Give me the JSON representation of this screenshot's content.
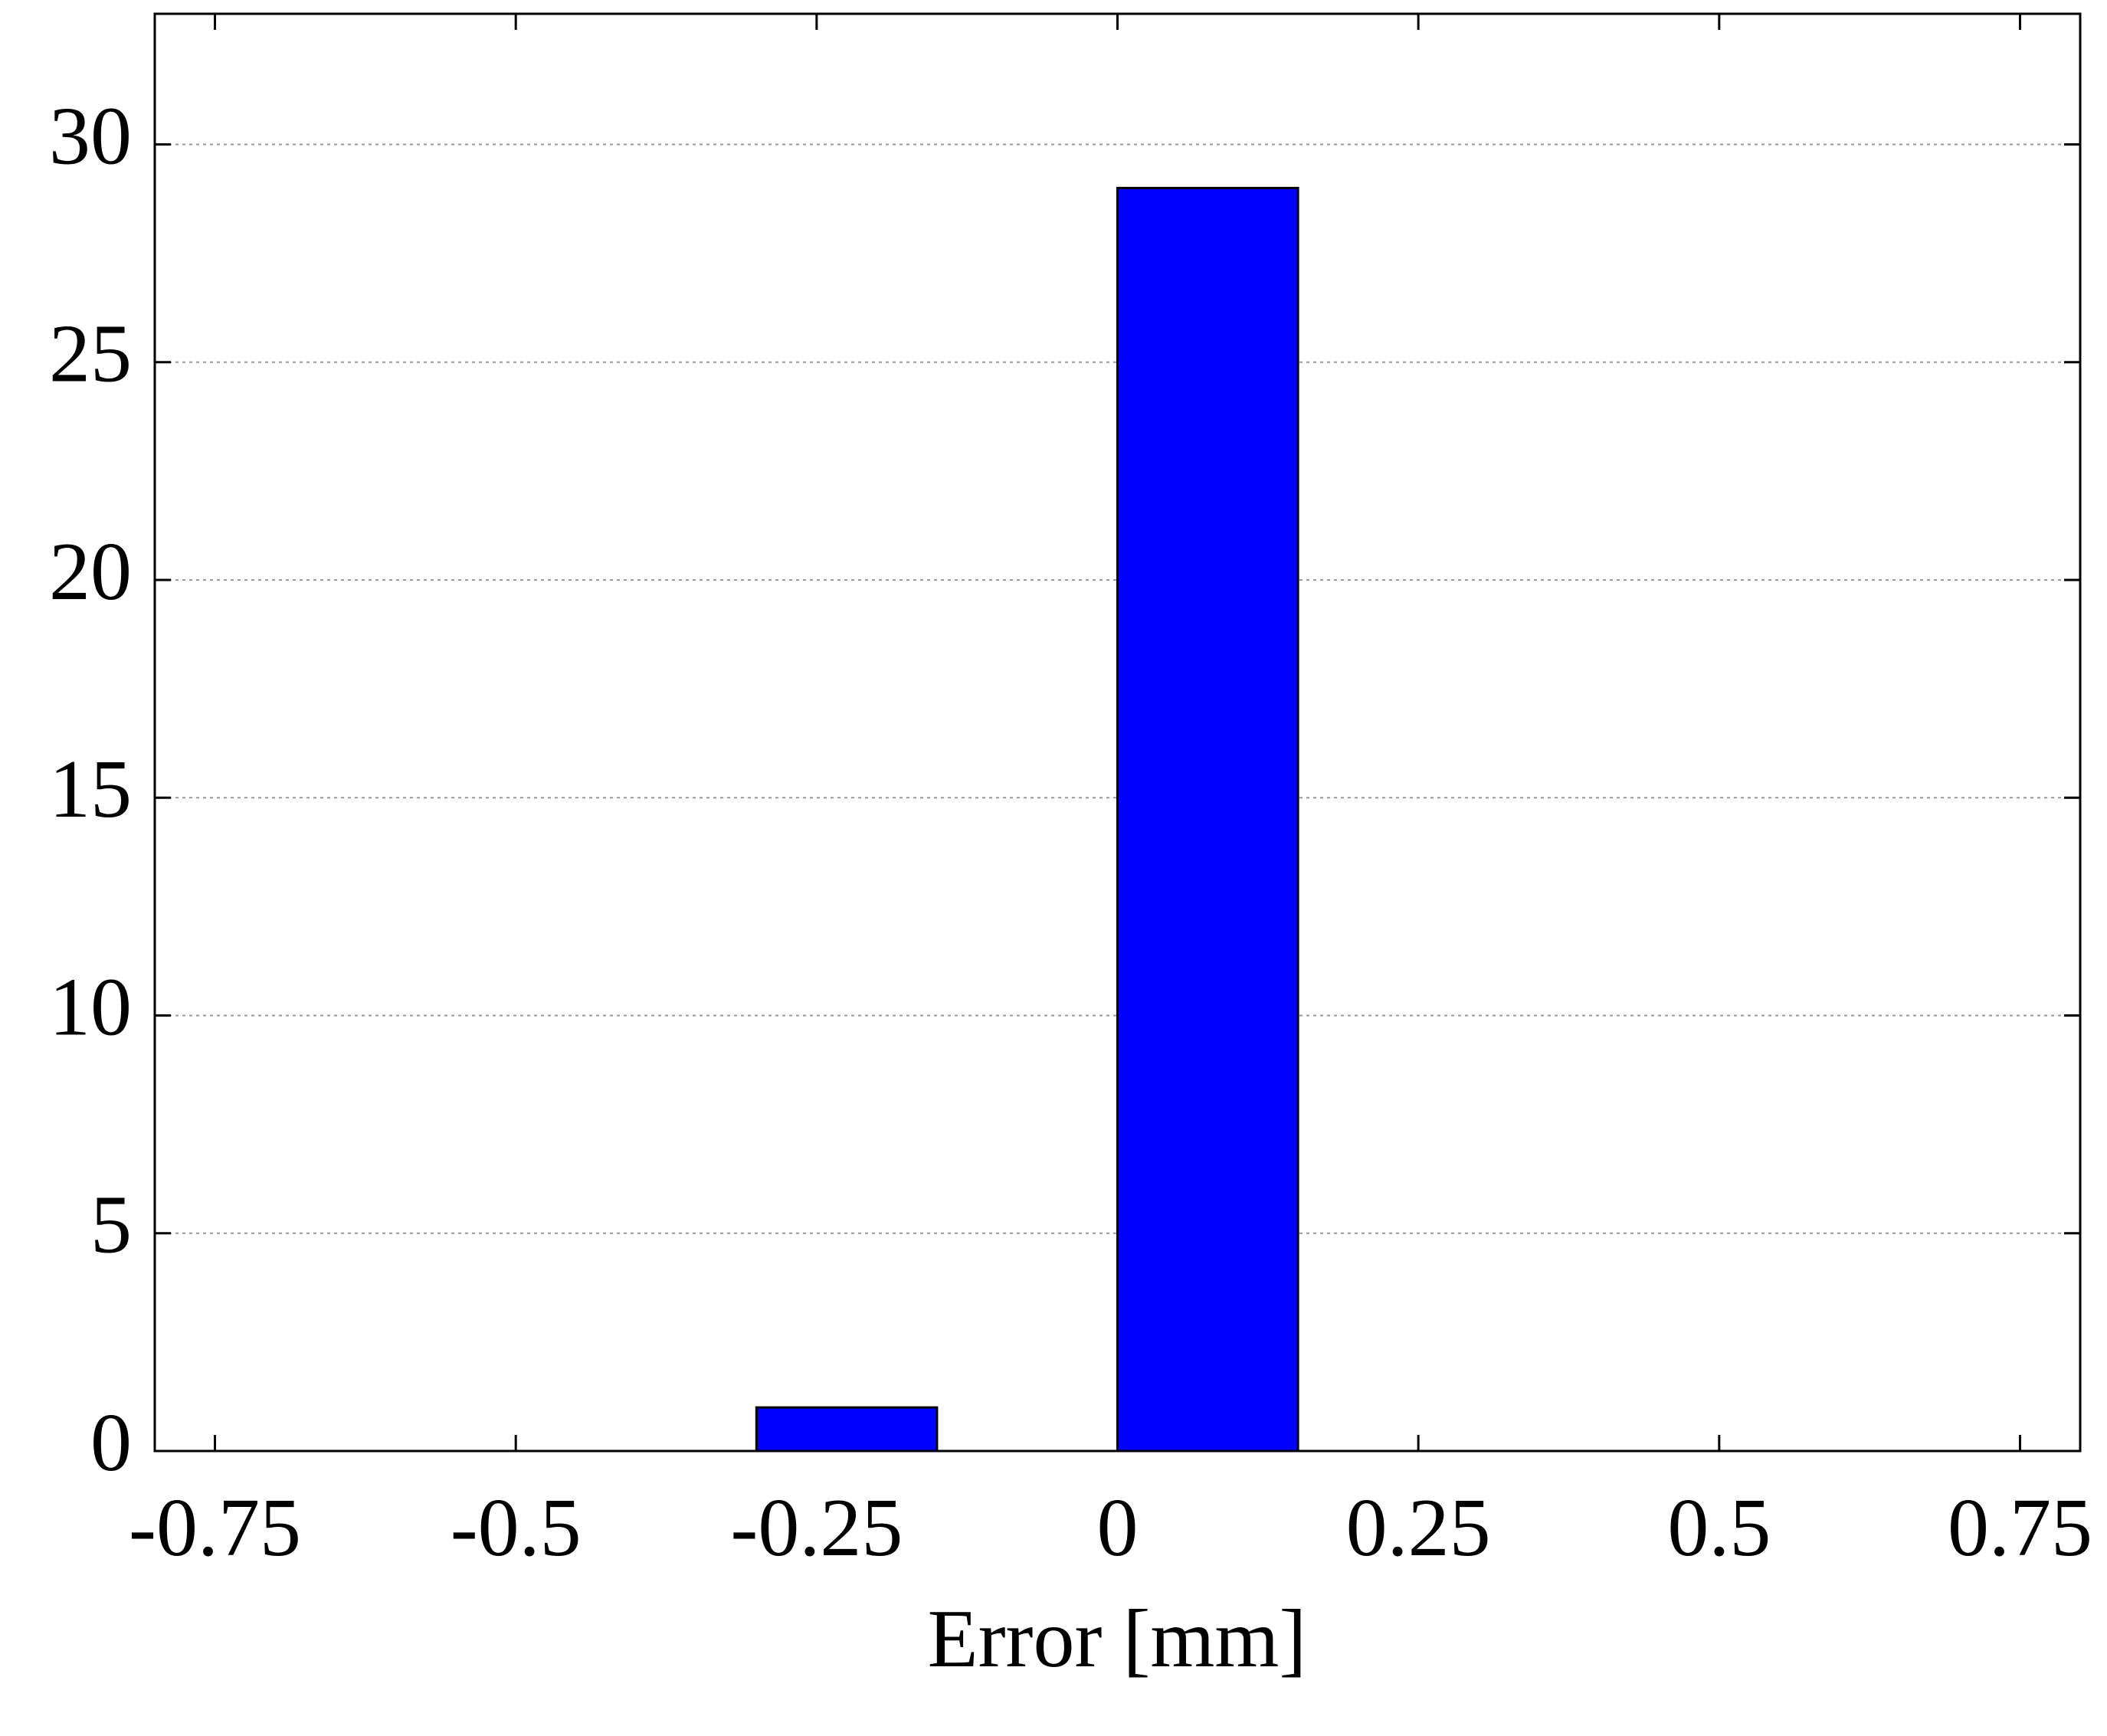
{
  "chart_data": {
    "type": "histogram",
    "x_label": "Error [mm]",
    "bins": [
      -0.75,
      -0.6,
      -0.45,
      -0.3,
      -0.15,
      0,
      0.15,
      0.3,
      0.45,
      0.6,
      0.75
    ],
    "values": [
      0,
      0,
      0,
      1,
      0,
      29,
      0,
      0,
      0,
      0
    ],
    "color": "#0000ff",
    "xlim": [
      -0.8,
      0.8
    ],
    "xticks": [
      -0.75,
      -0.5,
      -0.25,
      0,
      0.25,
      0.5,
      0.75
    ],
    "ylim": [
      0,
      33
    ],
    "yticks": [
      0,
      5,
      10,
      15,
      20,
      25,
      30
    ],
    "grid": true
  }
}
